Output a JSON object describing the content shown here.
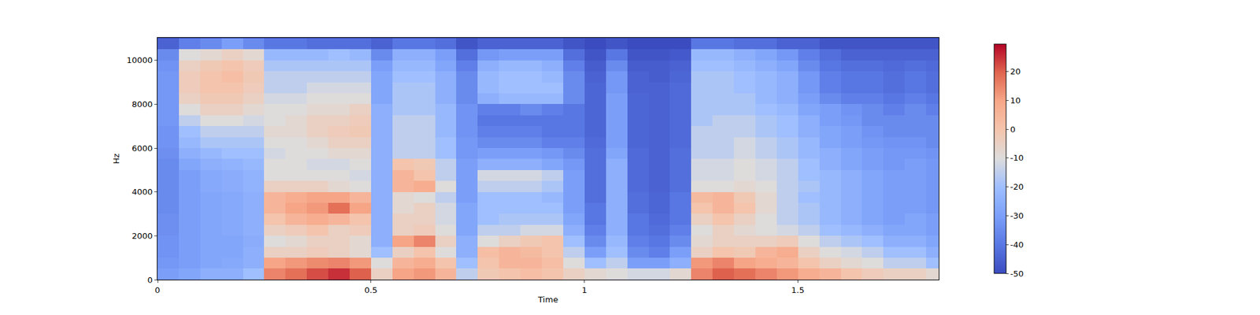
{
  "chart_data": {
    "type": "heatmap",
    "x_label": "Time",
    "y_label": "Hz",
    "x": [
      0.025,
      0.075,
      0.125,
      0.175,
      0.225,
      0.275,
      0.325,
      0.375,
      0.425,
      0.475,
      0.525,
      0.575,
      0.625,
      0.675,
      0.725,
      0.775,
      0.825,
      0.875,
      0.925,
      0.975,
      1.025,
      1.075,
      1.125,
      1.175,
      1.225,
      1.275,
      1.325,
      1.375,
      1.425,
      1.475,
      1.525,
      1.575,
      1.625,
      1.675,
      1.725,
      1.775,
      1.825
    ],
    "y": [
      250,
      750,
      1250,
      1750,
      2250,
      2750,
      3250,
      3750,
      4250,
      4750,
      5250,
      5750,
      6250,
      6750,
      7250,
      7750,
      8250,
      8750,
      9250,
      9750,
      10250,
      10750
    ],
    "cells": [
      [
        -30,
        -28,
        -25,
        -25,
        -20,
        15,
        18,
        22,
        25,
        20,
        -5,
        10,
        12,
        5,
        -15,
        -2,
        0,
        2,
        0,
        -5,
        -8,
        -10,
        -12,
        -12,
        -8,
        15,
        20,
        18,
        15,
        12,
        8,
        5,
        0,
        -3,
        -5,
        -5,
        -8
      ],
      [
        -32,
        -30,
        -28,
        -27,
        -25,
        10,
        12,
        14,
        15,
        12,
        -10,
        5,
        8,
        0,
        -20,
        0,
        5,
        5,
        2,
        -10,
        -20,
        -15,
        -30,
        -30,
        -25,
        12,
        15,
        10,
        8,
        5,
        0,
        -5,
        -8,
        -10,
        -15,
        -15,
        -20
      ],
      [
        -33,
        -30,
        -28,
        -28,
        -25,
        -5,
        -5,
        -3,
        -5,
        -8,
        -20,
        -5,
        0,
        -10,
        -25,
        2,
        5,
        3,
        0,
        -15,
        -30,
        -20,
        -35,
        -38,
        -30,
        -5,
        0,
        -2,
        5,
        8,
        -5,
        -10,
        -12,
        -15,
        -20,
        -20,
        -25
      ],
      [
        -33,
        -30,
        -28,
        -28,
        -26,
        -10,
        -8,
        -5,
        -5,
        -8,
        -25,
        10,
        15,
        -5,
        -25,
        -10,
        -5,
        -2,
        0,
        -20,
        -35,
        -22,
        -38,
        -40,
        -35,
        -8,
        -5,
        -5,
        -5,
        -3,
        -10,
        -15,
        -18,
        -20,
        -25,
        -25,
        -28
      ],
      [
        -34,
        -30,
        -28,
        -27,
        -25,
        -5,
        -3,
        0,
        -5,
        -3,
        -25,
        -5,
        -3,
        -10,
        -28,
        -15,
        -15,
        -12,
        -12,
        -25,
        -38,
        -25,
        -40,
        -42,
        -38,
        -10,
        -5,
        -8,
        -10,
        -12,
        -15,
        -20,
        -22,
        -25,
        -28,
        -28,
        -30
      ],
      [
        -34,
        -30,
        -28,
        -27,
        -25,
        0,
        5,
        8,
        5,
        0,
        -25,
        -5,
        -5,
        -12,
        -28,
        -20,
        -18,
        -18,
        -18,
        -28,
        -40,
        -25,
        -40,
        -43,
        -40,
        -5,
        0,
        -5,
        -10,
        -15,
        -18,
        -22,
        -25,
        -28,
        -30,
        -28,
        -30
      ],
      [
        -35,
        -30,
        -28,
        -27,
        -25,
        5,
        10,
        12,
        18,
        10,
        -25,
        -8,
        -5,
        -12,
        -28,
        -20,
        -20,
        -20,
        -20,
        -30,
        -40,
        -25,
        -42,
        -44,
        -40,
        0,
        5,
        0,
        -8,
        -15,
        -18,
        -22,
        -25,
        -28,
        -30,
        -30,
        -32
      ],
      [
        -35,
        -30,
        -28,
        -27,
        -25,
        5,
        8,
        10,
        10,
        5,
        -25,
        -8,
        -10,
        -15,
        -30,
        -20,
        -20,
        -20,
        -22,
        -30,
        -42,
        -25,
        -42,
        -44,
        -40,
        3,
        5,
        -2,
        -8,
        -15,
        -20,
        -22,
        -25,
        -28,
        -30,
        -30,
        -32
      ],
      [
        -35,
        -30,
        -27,
        -26,
        -24,
        -5,
        -5,
        -5,
        -8,
        -10,
        -25,
        5,
        8,
        -10,
        -30,
        -15,
        -15,
        -15,
        -18,
        -30,
        -42,
        -25,
        -43,
        -45,
        -42,
        -10,
        -10,
        -8,
        -10,
        -15,
        -18,
        -22,
        -25,
        -28,
        -30,
        -30,
        -32
      ],
      [
        -35,
        -30,
        -27,
        -26,
        -24,
        -10,
        -10,
        -10,
        -10,
        -12,
        -25,
        5,
        0,
        -15,
        -30,
        -12,
        -12,
        -12,
        -15,
        -30,
        -42,
        -25,
        -43,
        -45,
        -42,
        -12,
        -12,
        -10,
        -12,
        -15,
        -20,
        -22,
        -25,
        -28,
        -30,
        -30,
        -32
      ],
      [
        -35,
        -28,
        -25,
        -24,
        -22,
        -10,
        -10,
        -12,
        -12,
        -10,
        -25,
        0,
        -2,
        -15,
        -30,
        -25,
        -25,
        -25,
        -28,
        -32,
        -42,
        -25,
        -43,
        -45,
        -42,
        -12,
        -12,
        -10,
        -12,
        -15,
        -20,
        -25,
        -28,
        -30,
        -32,
        -30,
        -32
      ],
      [
        -34,
        -25,
        -22,
        -20,
        -20,
        -12,
        -10,
        -10,
        -8,
        -8,
        -25,
        -15,
        -15,
        -20,
        -32,
        -30,
        -30,
        -30,
        -32,
        -35,
        -42,
        -28,
        -43,
        -45,
        -42,
        -15,
        -15,
        -12,
        -15,
        -18,
        -22,
        -25,
        -28,
        -30,
        -32,
        -32,
        -33
      ],
      [
        -33,
        -22,
        -18,
        -18,
        -18,
        -10,
        -10,
        -8,
        -5,
        -5,
        -25,
        -15,
        -15,
        -20,
        -32,
        -35,
        -35,
        -35,
        -38,
        -38,
        -43,
        -30,
        -44,
        -45,
        -43,
        -15,
        -15,
        -12,
        -15,
        -18,
        -22,
        -28,
        -30,
        -32,
        -33,
        -33,
        -35
      ],
      [
        -33,
        -20,
        -15,
        -15,
        -15,
        -8,
        -8,
        -5,
        -3,
        -2,
        -25,
        -15,
        -15,
        -22,
        -33,
        -38,
        -38,
        -38,
        -40,
        -40,
        -44,
        -30,
        -44,
        -45,
        -43,
        -15,
        -15,
        -15,
        -18,
        -20,
        -25,
        -28,
        -30,
        -33,
        -35,
        -35,
        -35
      ],
      [
        -32,
        -15,
        -10,
        -10,
        -12,
        -10,
        -8,
        -5,
        -5,
        -3,
        -25,
        -15,
        -15,
        -22,
        -33,
        -40,
        -40,
        -40,
        -40,
        -40,
        -44,
        -30,
        -44,
        -45,
        -43,
        -18,
        -15,
        -15,
        -18,
        -20,
        -25,
        -30,
        -32,
        -35,
        -35,
        -35,
        -35
      ],
      [
        -32,
        -10,
        -5,
        -5,
        -8,
        -10,
        -10,
        -8,
        -8,
        -5,
        -25,
        -18,
        -18,
        -22,
        -33,
        -38,
        -38,
        -35,
        -38,
        -40,
        -44,
        -30,
        -44,
        -45,
        -43,
        -18,
        -18,
        -18,
        -20,
        -22,
        -28,
        -30,
        -33,
        -35,
        -38,
        -35,
        -38
      ],
      [
        -32,
        -5,
        -2,
        -2,
        -5,
        -12,
        -12,
        -10,
        -10,
        -10,
        -28,
        -18,
        -18,
        -25,
        -35,
        -25,
        -22,
        -22,
        -22,
        -35,
        -44,
        -30,
        -44,
        -45,
        -43,
        -18,
        -18,
        -18,
        -22,
        -25,
        -30,
        -35,
        -38,
        -38,
        -40,
        -38,
        -40
      ],
      [
        -32,
        -3,
        0,
        0,
        -3,
        -15,
        -15,
        -12,
        -12,
        -12,
        -28,
        -18,
        -18,
        -25,
        -35,
        -22,
        -20,
        -20,
        -20,
        -35,
        -44,
        -32,
        -45,
        -45,
        -43,
        -18,
        -18,
        -20,
        -22,
        -25,
        -32,
        -38,
        -40,
        -40,
        -42,
        -40,
        -42
      ],
      [
        -32,
        -3,
        0,
        2,
        -2,
        -15,
        -15,
        -15,
        -15,
        -15,
        -28,
        -20,
        -20,
        -25,
        -35,
        -22,
        -20,
        -20,
        -22,
        -35,
        -45,
        -32,
        -45,
        -46,
        -44,
        -18,
        -18,
        -20,
        -22,
        -25,
        -32,
        -38,
        -40,
        -40,
        -42,
        -40,
        -42
      ],
      [
        -33,
        -5,
        -2,
        0,
        -3,
        -18,
        -18,
        -18,
        -18,
        -18,
        -30,
        -22,
        -22,
        -28,
        -38,
        -25,
        -22,
        -22,
        -25,
        -38,
        -46,
        -35,
        -46,
        -46,
        -45,
        -20,
        -20,
        -22,
        -25,
        -28,
        -35,
        -40,
        -42,
        -42,
        -43,
        -42,
        -43
      ],
      [
        -35,
        -10,
        -8,
        -5,
        -8,
        -22,
        -22,
        -22,
        -20,
        -22,
        -35,
        -25,
        -25,
        -30,
        -42,
        -32,
        -30,
        -30,
        -30,
        -42,
        -48,
        -40,
        -48,
        -48,
        -47,
        -22,
        -22,
        -25,
        -28,
        -32,
        -38,
        -42,
        -45,
        -45,
        -45,
        -45,
        -45
      ],
      [
        -45,
        -38,
        -35,
        -30,
        -35,
        -40,
        -40,
        -42,
        -42,
        -42,
        -45,
        -40,
        -40,
        -42,
        -48,
        -45,
        -45,
        -45,
        -45,
        -48,
        -50,
        -48,
        -50,
        -50,
        -50,
        -40,
        -40,
        -42,
        -42,
        -45,
        -45,
        -48,
        -48,
        -48,
        -48,
        -48,
        -48
      ]
    ],
    "xlim": [
      0,
      1.83
    ],
    "xticks": [
      0,
      0.5,
      1,
      1.5
    ],
    "ylim": [
      0,
      11025
    ],
    "yticks": [
      0,
      2000,
      4000,
      6000,
      8000,
      10000
    ],
    "colorbar_range": [
      -50,
      29.5
    ],
    "colorbar_ticks": [
      -50,
      -40,
      -30,
      -20,
      -10,
      0,
      10,
      20
    ]
  }
}
